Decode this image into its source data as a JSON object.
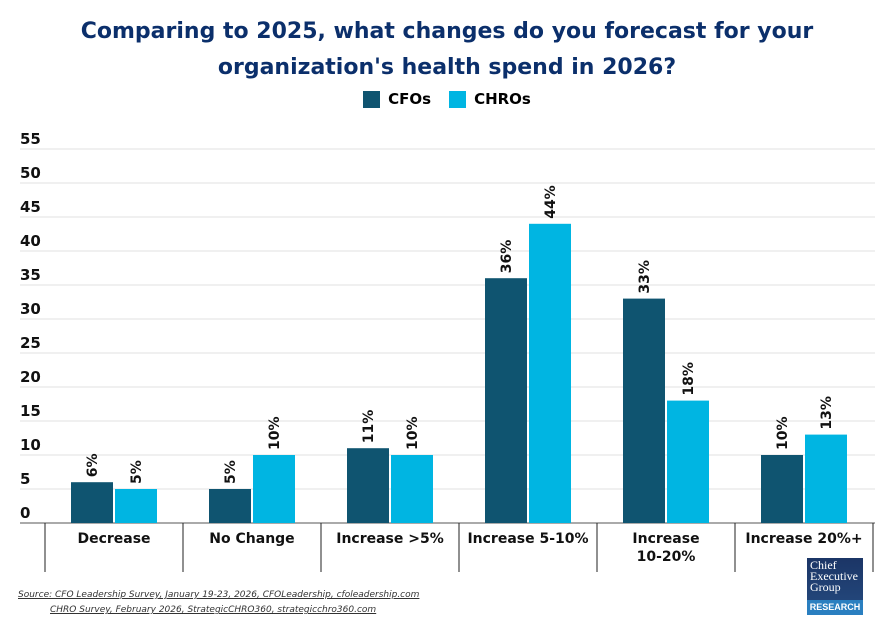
{
  "chart_data": {
    "type": "bar",
    "title": "Comparing to 2025, what changes do you forecast for your organization's health spend in 2026?",
    "title_lines": [
      "Comparing to 2025, what changes do you forecast for your",
      "organization's health spend in 2026?"
    ],
    "categories": [
      "Decrease",
      "No Change",
      "Increase >5%",
      "Increase 5-10%",
      "Increase 10-20%",
      "Increase 20%+"
    ],
    "series": [
      {
        "name": "CFOs",
        "color": "#0f5470",
        "values": [
          6,
          5,
          11,
          36,
          33,
          10
        ]
      },
      {
        "name": "CHROs",
        "color": "#00b5e2",
        "values": [
          5,
          10,
          10,
          44,
          18,
          13
        ]
      }
    ],
    "yticks": [
      0,
      5,
      10,
      15,
      20,
      25,
      30,
      35,
      40,
      45,
      50,
      55
    ],
    "ylim": [
      0,
      55
    ],
    "grid": true,
    "legend": "top-center",
    "data_label_suffix": "%"
  },
  "footer": {
    "source1": "Source: CFO Leadership Survey, January 19-23, 2026, CFOLeadership, cfoleadership.com",
    "source2": "CHRO Survey, February 2026, StrategicCHRO360, strategicchro360.com",
    "logo_text": "Chief Executive Group",
    "logo_sub": "RESEARCH"
  }
}
